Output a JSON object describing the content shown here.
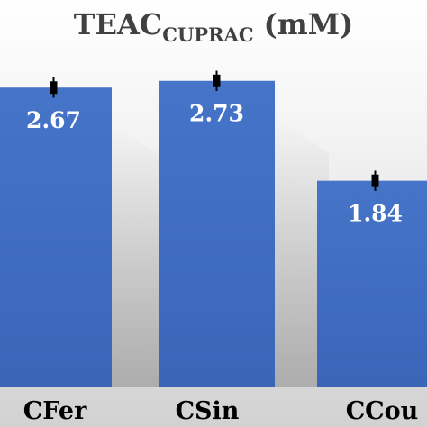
{
  "chart_data": {
    "type": "bar",
    "title": "TEAC",
    "title_subscript": "CUPRAC",
    "title_unit": " (mM)",
    "categories": [
      "CFer",
      "CSin",
      "CCou"
    ],
    "values": [
      2.67,
      2.73,
      1.84
    ],
    "data_labels": [
      "2.67",
      "2.73",
      "1.84"
    ],
    "error": [
      0.09,
      0.09,
      0.09
    ],
    "ylim": [
      0,
      3.45
    ],
    "xlabel": "",
    "ylabel": "",
    "grid": false,
    "legend": "none",
    "bar_color": "#3f6ec1",
    "label_color": "#ffffff",
    "category_color": "#000000",
    "error_color": "#000000"
  }
}
